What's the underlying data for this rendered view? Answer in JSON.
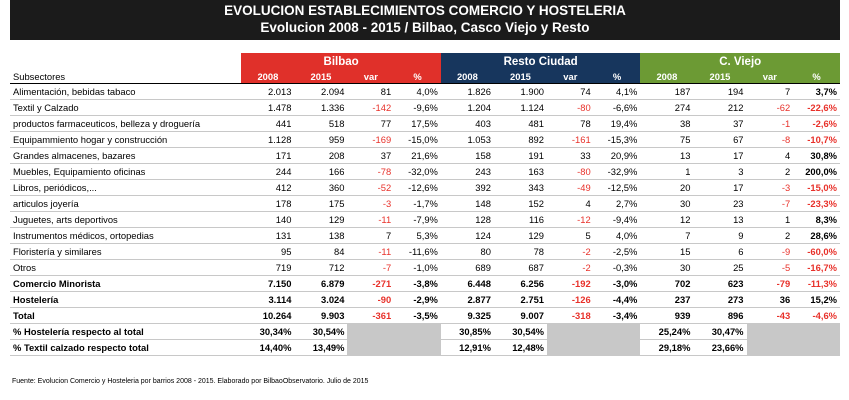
{
  "title": {
    "line1": "EVOLUCION ESTABLECIMIENTOS COMERCIO Y HOSTELERIA",
    "line2": "Evolucion 2008 - 2015 / Bilbao, Casco Viejo y Resto"
  },
  "groups": {
    "bilbao": "Bilbao",
    "resto": "Resto Ciudad",
    "cviejo": "C. Viejo"
  },
  "colors": {
    "bilbao": "#e0302a",
    "resto": "#17365d",
    "cviejo": "#6c9a34",
    "negative": "#e8312a"
  },
  "subheader": {
    "label": "Subsectores",
    "y2008": "2008",
    "y2015": "2015",
    "var": "var",
    "pct": "%"
  },
  "rows": [
    {
      "label": "Alimentación, bebidas tabaco",
      "b": [
        "2.013",
        "2.094",
        "81",
        "4,0%"
      ],
      "r": [
        "1.826",
        "1.900",
        "74",
        "4,1%"
      ],
      "c": [
        "187",
        "194",
        "7",
        "3,7%"
      ]
    },
    {
      "label": "Textil y Calzado",
      "b": [
        "1.478",
        "1.336",
        "-142",
        "-9,6%"
      ],
      "r": [
        "1.204",
        "1.124",
        "-80",
        "-6,6%"
      ],
      "c": [
        "274",
        "212",
        "-62",
        "-22,6%"
      ]
    },
    {
      "label": "productos farmaceuticos, belleza y droguería",
      "b": [
        "441",
        "518",
        "77",
        "17,5%"
      ],
      "r": [
        "403",
        "481",
        "78",
        "19,4%"
      ],
      "c": [
        "38",
        "37",
        "-1",
        "-2,6%"
      ]
    },
    {
      "label": "Equipammiento hogar y construcción",
      "b": [
        "1.128",
        "959",
        "-169",
        "-15,0%"
      ],
      "r": [
        "1.053",
        "892",
        "-161",
        "-15,3%"
      ],
      "c": [
        "75",
        "67",
        "-8",
        "-10,7%"
      ]
    },
    {
      "label": "Grandes almacenes, bazares",
      "b": [
        "171",
        "208",
        "37",
        "21,6%"
      ],
      "r": [
        "158",
        "191",
        "33",
        "20,9%"
      ],
      "c": [
        "13",
        "17",
        "4",
        "30,8%"
      ]
    },
    {
      "label": "Muebles, Equipamiento oficinas",
      "b": [
        "244",
        "166",
        "-78",
        "-32,0%"
      ],
      "r": [
        "243",
        "163",
        "-80",
        "-32,9%"
      ],
      "c": [
        "1",
        "3",
        "2",
        "200,0%"
      ]
    },
    {
      "label": "Libros, periódicos,...",
      "b": [
        "412",
        "360",
        "-52",
        "-12,6%"
      ],
      "r": [
        "392",
        "343",
        "-49",
        "-12,5%"
      ],
      "c": [
        "20",
        "17",
        "-3",
        "-15,0%"
      ]
    },
    {
      "label": "articulos joyería",
      "b": [
        "178",
        "175",
        "-3",
        "-1,7%"
      ],
      "r": [
        "148",
        "152",
        "4",
        "2,7%"
      ],
      "c": [
        "30",
        "23",
        "-7",
        "-23,3%"
      ]
    },
    {
      "label": "Juguetes, arts deportivos",
      "b": [
        "140",
        "129",
        "-11",
        "-7,9%"
      ],
      "r": [
        "128",
        "116",
        "-12",
        "-9,4%"
      ],
      "c": [
        "12",
        "13",
        "1",
        "8,3%"
      ]
    },
    {
      "label": "Instrumentos médicos, ortopedias",
      "b": [
        "131",
        "138",
        "7",
        "5,3%"
      ],
      "r": [
        "124",
        "129",
        "5",
        "4,0%"
      ],
      "c": [
        "7",
        "9",
        "2",
        "28,6%"
      ]
    },
    {
      "label": "Floristería y similares",
      "b": [
        "95",
        "84",
        "-11",
        "-11,6%"
      ],
      "r": [
        "80",
        "78",
        "-2",
        "-2,5%"
      ],
      "c": [
        "15",
        "6",
        "-9",
        "-60,0%"
      ]
    },
    {
      "label": "Otros",
      "b": [
        "719",
        "712",
        "-7",
        "-1,0%"
      ],
      "r": [
        "689",
        "687",
        "-2",
        "-0,3%"
      ],
      "c": [
        "30",
        "25",
        "-5",
        "-16,7%"
      ]
    }
  ],
  "totals": [
    {
      "label": "Comercio Minorista",
      "b": [
        "7.150",
        "6.879",
        "-271",
        "-3,8%"
      ],
      "r": [
        "6.448",
        "6.256",
        "-192",
        "-3,0%"
      ],
      "c": [
        "702",
        "623",
        "-79",
        "-11,3%"
      ]
    },
    {
      "label": "Hostelería",
      "b": [
        "3.114",
        "3.024",
        "-90",
        "-2,9%"
      ],
      "r": [
        "2.877",
        "2.751",
        "-126",
        "-4,4%"
      ],
      "c": [
        "237",
        "273",
        "36",
        "15,2%"
      ]
    },
    {
      "label": "Total",
      "b": [
        "10.264",
        "9.903",
        "-361",
        "-3,5%"
      ],
      "r": [
        "9.325",
        "9.007",
        "-318",
        "-3,4%"
      ],
      "c": [
        "939",
        "896",
        "-43",
        "-4,6%"
      ]
    }
  ],
  "ratios": [
    {
      "label": "% Hostelería respecto al total",
      "b": [
        "30,34%",
        "30,54%"
      ],
      "r": [
        "30,85%",
        "30,54%"
      ],
      "c": [
        "25,24%",
        "30,47%"
      ]
    },
    {
      "label": "% Textil calzado respecto total",
      "b": [
        "14,40%",
        "13,49%"
      ],
      "r": [
        "12,91%",
        "12,48%"
      ],
      "c": [
        "29,18%",
        "23,66%"
      ]
    }
  ],
  "footnote": "Fuente: Evolucion Comercio y Hosteleria por barrios 2008 - 2015. Elaborado por BilbaoObservatorio. Julio de 2015"
}
